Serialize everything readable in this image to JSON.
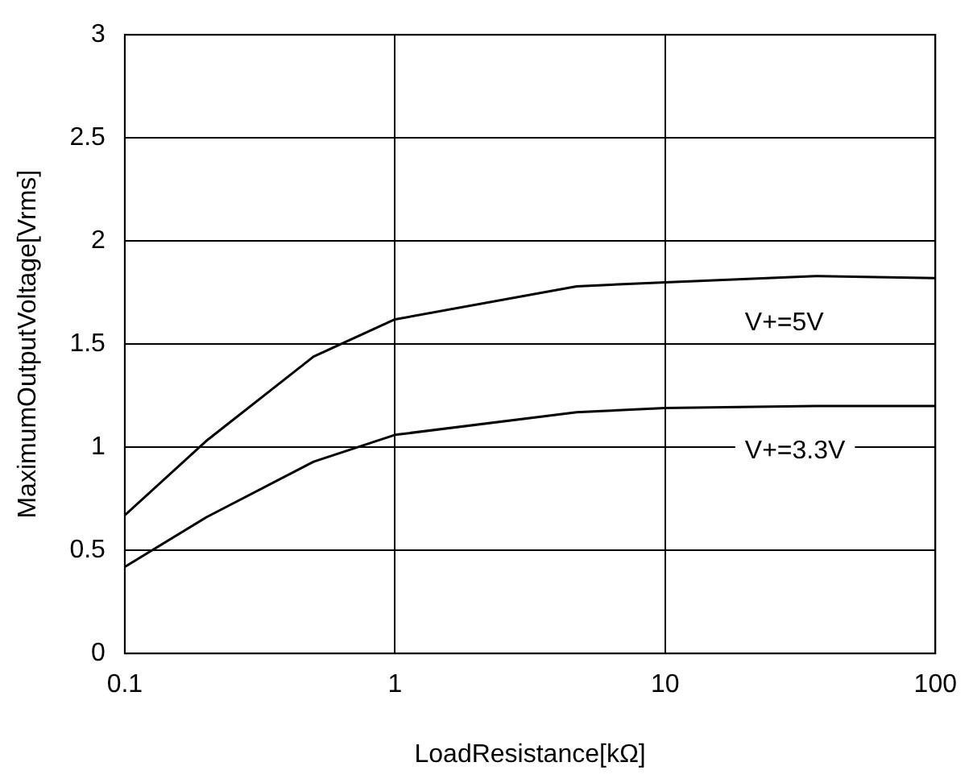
{
  "chart_data": {
    "type": "line",
    "xlabel": "LoadResistance[kΩ]",
    "ylabel": "MaximumOutputVoltage[Vrms]",
    "x": [
      0.1,
      0.2,
      0.5,
      1,
      4.7,
      10,
      36,
      100
    ],
    "series": [
      {
        "name": "V+=5V",
        "color": "#000000",
        "values": [
          0.67,
          1.03,
          1.44,
          1.62,
          1.78,
          1.8,
          1.83,
          1.82
        ]
      },
      {
        "name": "V+=3.3V",
        "color": "#000000",
        "values": [
          0.42,
          0.66,
          0.93,
          1.06,
          1.17,
          1.19,
          1.2,
          1.2
        ]
      }
    ],
    "log": "x",
    "xlim": [
      0.1,
      100
    ],
    "xticks": [
      0.1,
      1,
      10,
      100
    ],
    "ylim": [
      0,
      3
    ],
    "yticks": [
      0,
      0.5,
      1,
      1.5,
      2,
      2.5,
      3
    ],
    "grid": true,
    "legend": false,
    "marker": "none",
    "line_style": "solid"
  }
}
